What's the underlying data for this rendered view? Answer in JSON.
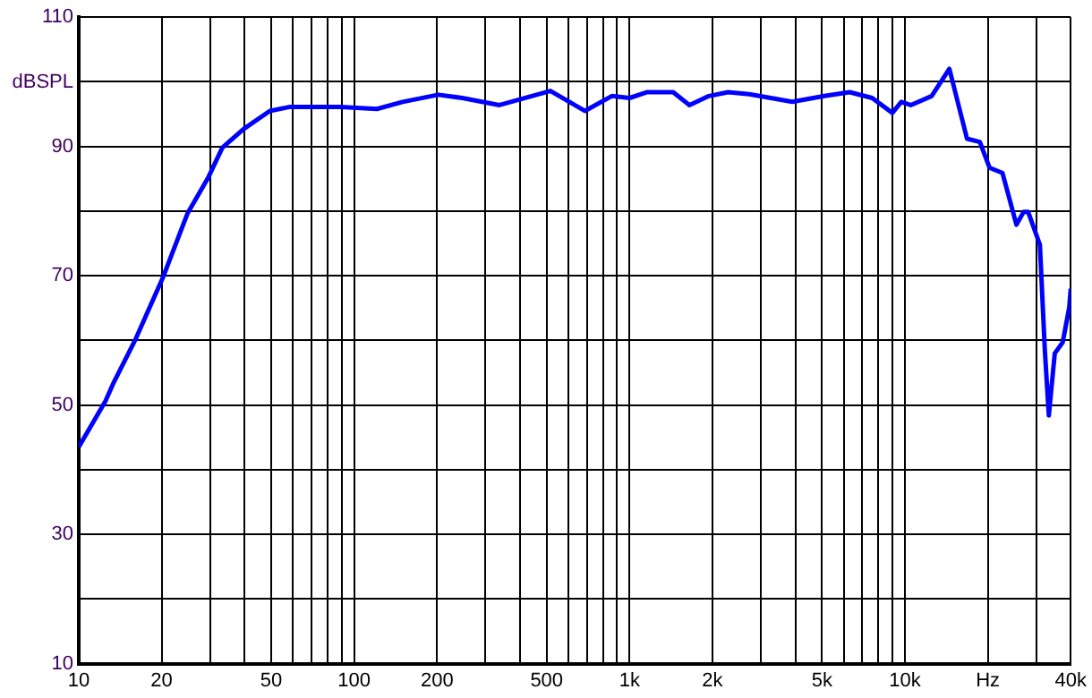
{
  "chart_data": {
    "type": "line",
    "x": [
      10,
      12.5,
      13.4,
      16,
      20.2,
      24.8,
      29.6,
      33.2,
      39.7,
      49.4,
      58,
      89,
      121,
      150,
      202,
      247,
      337,
      516,
      688,
      862,
      1000,
      1160,
      1440,
      1650,
      1940,
      2280,
      2720,
      3900,
      5100,
      6300,
      7600,
      9000,
      9700,
      10500,
      12500,
      14500,
      16800,
      18700,
      20300,
      22600,
      25400,
      27000,
      28000,
      30900,
      32200,
      33300,
      35000,
      37400,
      39500,
      40000
    ],
    "series": [
      {
        "color": "#0000ff",
        "values": [
          43.5,
          50.6,
          53.5,
          60,
          69.7,
          79.6,
          85.3,
          89.8,
          92.7,
          95.5,
          96.1,
          96.1,
          95.8,
          96.9,
          98,
          97.5,
          96.4,
          98.6,
          95.5,
          97.8,
          97.5,
          98.4,
          98.4,
          96.4,
          97.8,
          98.4,
          98.1,
          96.9,
          97.8,
          98.4,
          97.5,
          95.2,
          96.9,
          96.4,
          97.8,
          102,
          91.2,
          90.7,
          86.7,
          85.9,
          77.9,
          79.9,
          79.9,
          74.8,
          58.6,
          48.4,
          58,
          59.7,
          65.1,
          68
        ]
      }
    ],
    "log": "x",
    "xlim": [
      10,
      40000
    ],
    "xticks": [
      10,
      20,
      {
        "value": 30,
        "label": null
      },
      {
        "value": 40,
        "label": null
      },
      50,
      {
        "value": 60,
        "label": null
      },
      {
        "value": 70,
        "label": null
      },
      {
        "value": 80,
        "label": null
      },
      {
        "value": 90,
        "label": null
      },
      100,
      200,
      {
        "value": 300,
        "label": null
      },
      {
        "value": 400,
        "label": null
      },
      500,
      {
        "value": 600,
        "label": null
      },
      {
        "value": 700,
        "label": null
      },
      {
        "value": 800,
        "label": null
      },
      {
        "value": 900,
        "label": null
      },
      {
        "value": 1000,
        "label": "1k"
      },
      {
        "value": 2000,
        "label": "2k"
      },
      {
        "value": 3000,
        "label": null
      },
      {
        "value": 4000,
        "label": null
      },
      {
        "value": 5000,
        "label": "5k"
      },
      {
        "value": 6000,
        "label": null
      },
      {
        "value": 7000,
        "label": null
      },
      {
        "value": 8000,
        "label": null
      },
      {
        "value": 9000,
        "label": null
      },
      {
        "value": 10000,
        "label": "10k"
      },
      {
        "value": 20000,
        "label": "Hz"
      },
      {
        "value": 30000,
        "label": null
      },
      {
        "value": 40000,
        "label": "40k"
      }
    ],
    "ylim": [
      10,
      110
    ],
    "yticks": [
      10,
      {
        "value": 20,
        "label": null
      },
      30,
      {
        "value": 40,
        "label": null
      },
      50,
      {
        "value": 60,
        "label": null
      },
      70,
      {
        "value": 80,
        "label": null
      },
      90,
      {
        "value": 100,
        "label": "dBSPL"
      },
      110
    ],
    "grid": true,
    "legend": false,
    "marker": "none",
    "line_style": "solid"
  }
}
